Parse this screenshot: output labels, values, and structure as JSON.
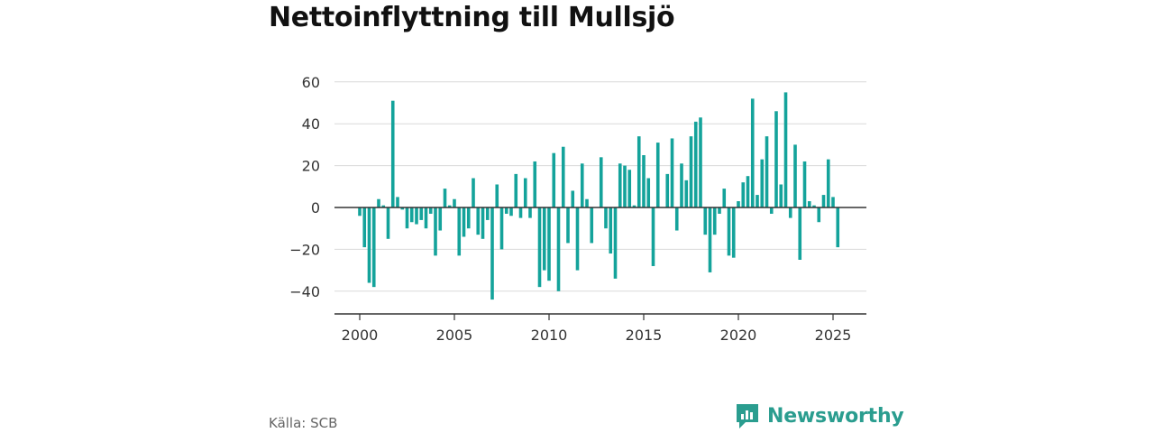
{
  "title": "Nettoinflyttning till Mullsjö",
  "source_label": "Källa: SCB",
  "brand": {
    "name": "Newsworthy",
    "logo_icon": "newsworthy-logo-icon",
    "color": "#2a9d8f"
  },
  "colors": {
    "bar": "#14a39b",
    "grid": "#d9d9d9",
    "zero_line": "#333333"
  },
  "chart_data": {
    "type": "bar",
    "title": "Nettoinflyttning till Mullsjö",
    "xlabel": "",
    "ylabel": "",
    "frequency": "quarterly",
    "start": "2000 Q1",
    "x_ticks": [
      2000,
      2005,
      2010,
      2015,
      2020,
      2025
    ],
    "y_ticks": [
      -40,
      -20,
      0,
      20,
      40,
      60
    ],
    "ylim": [
      -50,
      62
    ],
    "grid": true,
    "values": [
      -4,
      -19,
      -36,
      -38,
      4,
      1,
      -15,
      51,
      5,
      -1,
      -10,
      -7,
      -8,
      -6,
      -10,
      -3,
      -23,
      -11,
      9,
      1,
      4,
      -23,
      -14,
      -10,
      14,
      -13,
      -15,
      -6,
      -44,
      11,
      -20,
      -3,
      -4,
      16,
      -5,
      14,
      -5,
      22,
      -38,
      -30,
      -35,
      26,
      -40,
      29,
      -17,
      8,
      -30,
      21,
      4,
      -17,
      0,
      24,
      -10,
      -22,
      -34,
      21,
      20,
      18,
      1,
      34,
      25,
      14,
      -28,
      31,
      0,
      16,
      33,
      -11,
      21,
      13,
      34,
      41,
      43,
      -13,
      -31,
      -13,
      -3,
      9,
      -23,
      -24,
      3,
      12,
      15,
      52,
      6,
      23,
      34,
      -3,
      46,
      11,
      55,
      -5,
      30,
      -25,
      22,
      3,
      1,
      -7,
      6,
      23,
      5,
      -19
    ]
  }
}
